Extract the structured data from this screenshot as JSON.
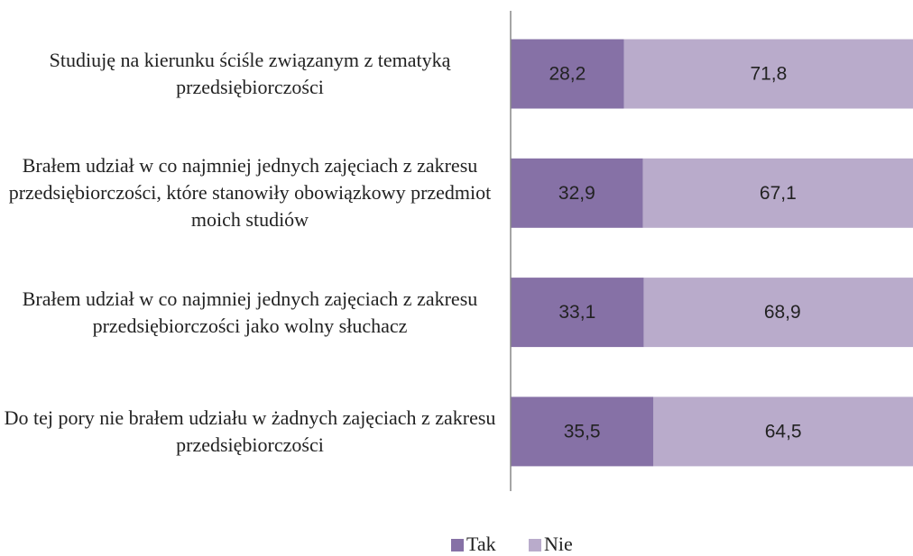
{
  "chart_data": {
    "type": "stacked-bar-horizontal",
    "categories": [
      "Studiuję na kierunku ściśle związanym z tematyką przedsiębiorczości",
      "Brałem udział w co najmniej jednych zajęciach z zakresu przedsiębiorczości, które stanowiły obowiązkowy przedmiot moich studiów",
      "Brałem udział w co najmniej jednych zajęciach z zakresu przedsiębiorczości jako wolny słuchacz",
      "Do tej pory nie brałem udziału w żadnych zajęciach z zakresu przedsiębiorczości"
    ],
    "series": [
      {
        "name": "Tak",
        "color": "#8671a6",
        "values": [
          28.2,
          32.9,
          33.1,
          35.5
        ],
        "value_labels": [
          "28,2",
          "32,9",
          "33,1",
          "35,5"
        ]
      },
      {
        "name": "Nie",
        "color": "#b9abcb",
        "values": [
          71.8,
          67.1,
          68.9,
          64.5
        ],
        "value_labels": [
          "71,8",
          "67,1",
          "68,9",
          "64,5"
        ]
      }
    ],
    "xlim": [
      0,
      100
    ],
    "legend": "bottom"
  }
}
